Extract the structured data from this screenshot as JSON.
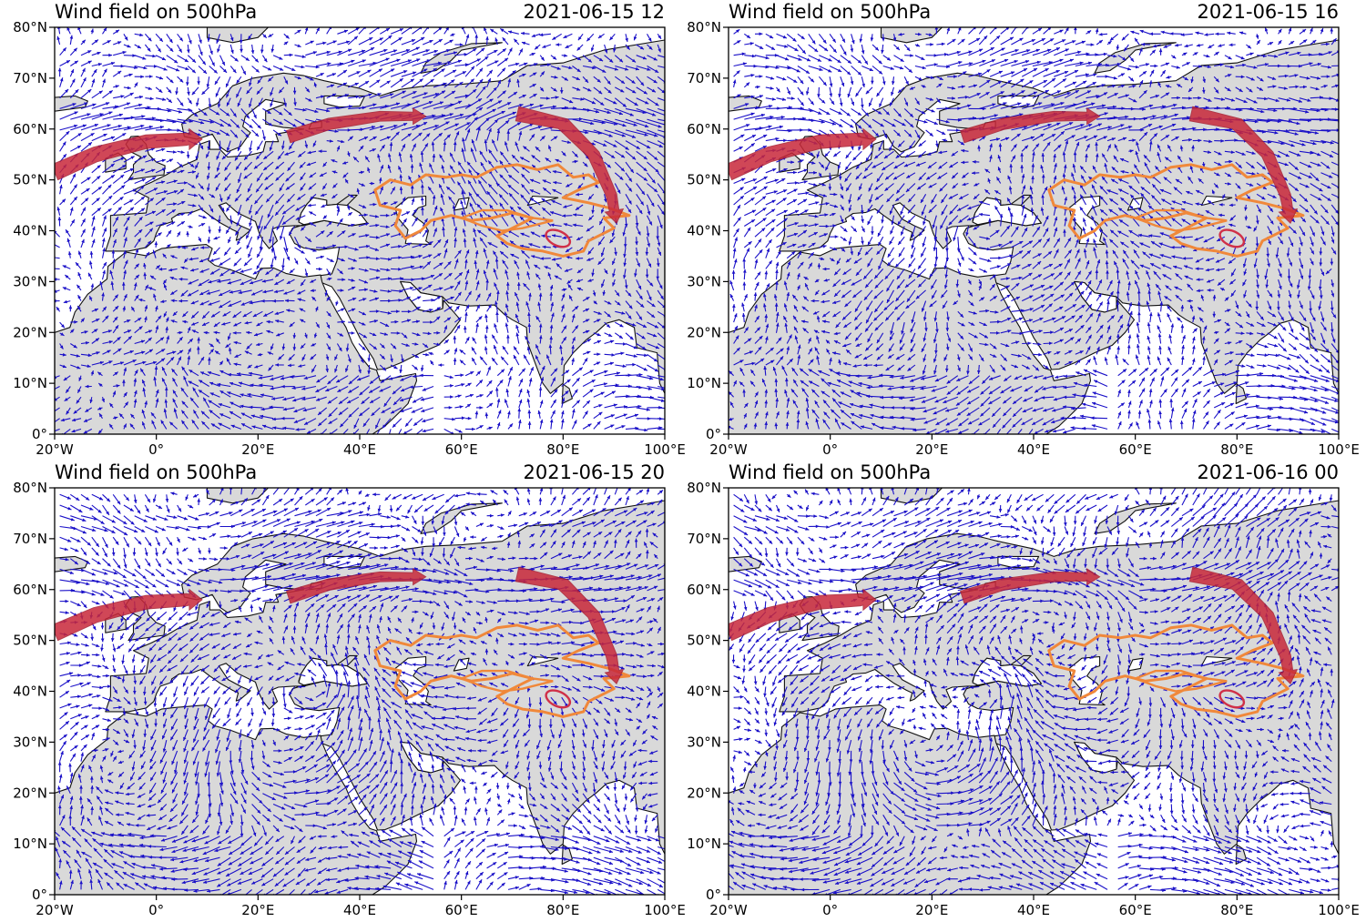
{
  "figure": {
    "panels": [
      {
        "title": "Wind field on 500hPa",
        "timestamp": "2021-06-15 12",
        "seed": 11
      },
      {
        "title": "Wind field on 500hPa",
        "timestamp": "2021-06-15 16",
        "seed": 23
      },
      {
        "title": "Wind field on 500hPa",
        "timestamp": "2021-06-15 20",
        "seed": 37
      },
      {
        "title": "Wind field on 500hPa",
        "timestamp": "2021-06-16 00",
        "seed": 51
      }
    ],
    "lon_range": [
      -20,
      100
    ],
    "lat_range": [
      0,
      80
    ],
    "x_ticks": [
      "20°W",
      "0°",
      "20°E",
      "40°E",
      "60°E",
      "80°E",
      "100°E"
    ],
    "y_ticks": [
      "0°",
      "10°N",
      "20°N",
      "30°N",
      "40°N",
      "50°N",
      "60°N",
      "70°N",
      "80°N"
    ],
    "colors": {
      "land": "#d9d9d9",
      "ocean": "#ffffff",
      "vectors": "#1a10c8",
      "flow_arrow": "#c8283a",
      "region_outline": "#f0883a",
      "basin_outline": "#d03048"
    }
  }
}
